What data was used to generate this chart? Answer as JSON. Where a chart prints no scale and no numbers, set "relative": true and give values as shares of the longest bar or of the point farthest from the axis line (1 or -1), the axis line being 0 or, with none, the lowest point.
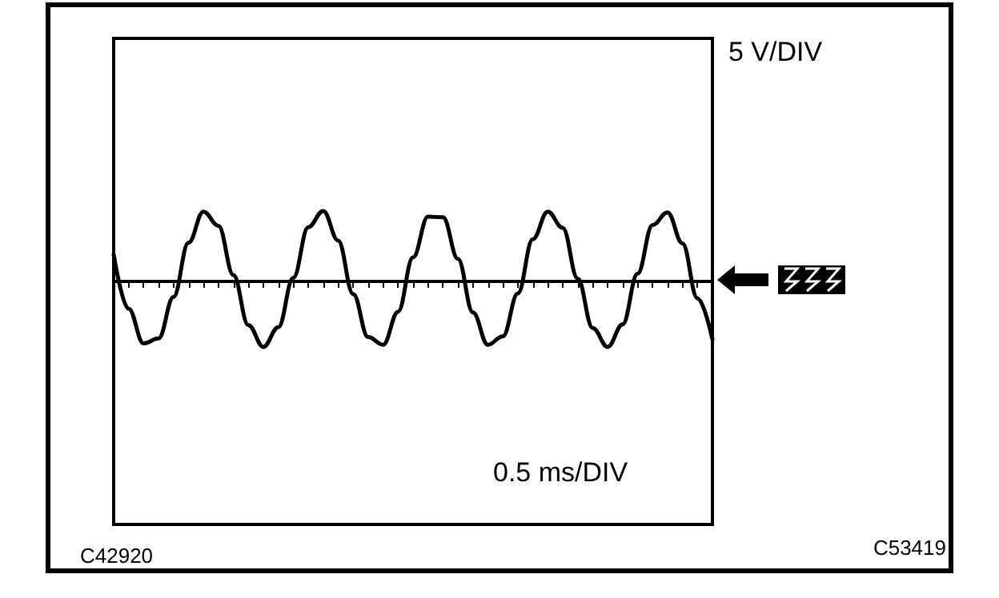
{
  "chart_data": {
    "type": "line",
    "relative": true,
    "grid": false,
    "marker": "none",
    "line_style": "solid",
    "categories": [
      null,
      null,
      null,
      null,
      null,
      null,
      null,
      null,
      null,
      null,
      null,
      null,
      null,
      null,
      null,
      null,
      null,
      null,
      null,
      null,
      null,
      null,
      null,
      null,
      null,
      null,
      null,
      null,
      null,
      null,
      null,
      null,
      null,
      null,
      null,
      null,
      null,
      null,
      null,
      null,
      null
    ],
    "series": [
      {
        "color": "#000000",
        "values": [
          0.38,
          -0.39,
          -0.88,
          -0.81,
          -0.22,
          0.55,
          0.99,
          0.79,
          0.09,
          -0.62,
          -0.93,
          -0.65,
          0.05,
          0.77,
          1,
          0.58,
          -0.18,
          -0.79,
          -0.9,
          -0.43,
          0.34,
          0.92,
          0.91,
          0.32,
          -0.44,
          -0.9,
          -0.78,
          -0.17,
          0.6,
          0.99,
          0.76,
          0.04,
          -0.66,
          -0.93,
          -0.61,
          0.11,
          0.8,
          0.98,
          0.54,
          -0.24,
          -0.82
        ]
      }
    ],
    "annotations": [
      "5 V/DIV",
      "0.5 ms/DIV",
      "C42920",
      "C53419"
    ]
  }
}
